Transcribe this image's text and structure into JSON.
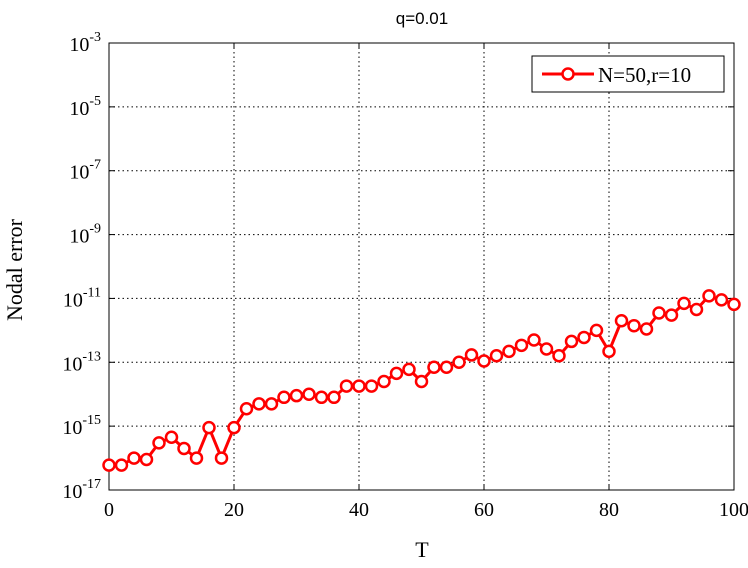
{
  "chart_data": {
    "type": "line",
    "title": "q=0.01",
    "xlabel": "T",
    "ylabel": "Nodal error",
    "xlim": [
      0,
      100
    ],
    "ylim": [
      1e-17,
      0.001
    ],
    "yscale": "log",
    "grid": true,
    "legend_position": "top-right",
    "x_ticks": [
      "0",
      "20",
      "40",
      "60",
      "80",
      "100"
    ],
    "y_ticks": [
      {
        "base": "10",
        "exp": "-3"
      },
      {
        "base": "10",
        "exp": "-5"
      },
      {
        "base": "10",
        "exp": "-7"
      },
      {
        "base": "10",
        "exp": "-9"
      },
      {
        "base": "10",
        "exp": "-11"
      },
      {
        "base": "10",
        "exp": "-13"
      },
      {
        "base": "10",
        "exp": "-15"
      },
      {
        "base": "10",
        "exp": "-17"
      }
    ],
    "series": [
      {
        "name": "N=50,r=10",
        "color": "#ff0000",
        "marker": "circle",
        "x": [
          0,
          2,
          4,
          6,
          8,
          10,
          12,
          14,
          16,
          18,
          20,
          22,
          24,
          26,
          28,
          30,
          32,
          34,
          36,
          38,
          40,
          42,
          44,
          46,
          48,
          50,
          52,
          54,
          56,
          58,
          60,
          62,
          64,
          66,
          68,
          70,
          72,
          74,
          76,
          78,
          80,
          82,
          84,
          86,
          88,
          90,
          92,
          94,
          96,
          98,
          100
        ],
        "y": [
          6e-17,
          6e-17,
          1e-16,
          9e-17,
          3e-16,
          4.5e-16,
          2e-16,
          1e-16,
          9e-16,
          1e-16,
          9e-16,
          3.5e-15,
          5e-15,
          5e-15,
          8e-15,
          9e-15,
          1e-14,
          8e-15,
          8e-15,
          1.8e-14,
          1.8e-14,
          1.8e-14,
          2.5e-14,
          4.5e-14,
          6e-14,
          2.5e-14,
          7e-14,
          7e-14,
          1e-13,
          1.7e-13,
          1.1e-13,
          1.6e-13,
          2.2e-13,
          3.4e-13,
          5e-13,
          2.6e-13,
          1.6e-13,
          4.5e-13,
          6e-13,
          1e-12,
          2.2e-13,
          2e-12,
          1.4e-12,
          1.1e-12,
          3.5e-12,
          3e-12,
          7e-12,
          4.5e-12,
          1.2e-11,
          9e-12,
          6.5e-12
        ]
      }
    ]
  }
}
